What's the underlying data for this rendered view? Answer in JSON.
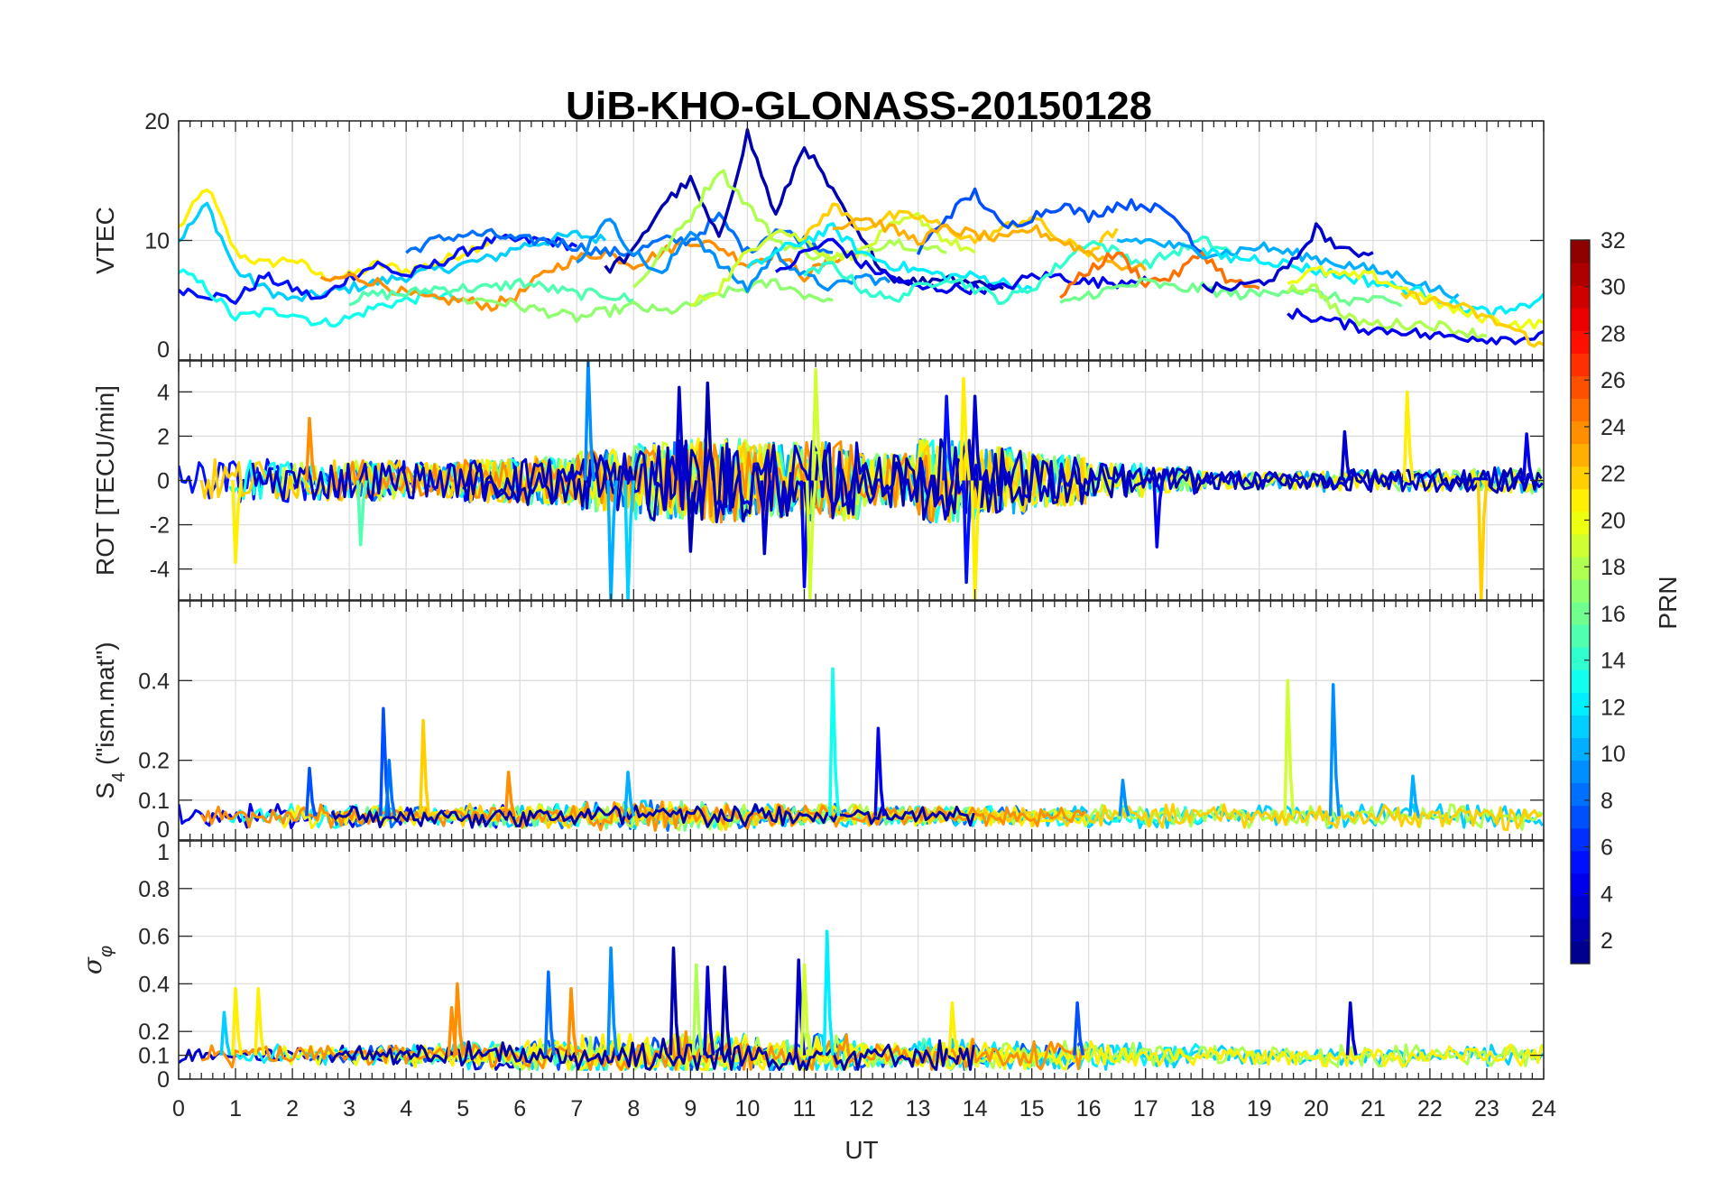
{
  "chart_data": {
    "type": "line",
    "title": "UiB-KHO-GLONASS-20150128",
    "xlabel": "UT",
    "xlim": [
      0,
      24
    ],
    "xticks": [
      "0",
      "1",
      "2",
      "3",
      "4",
      "5",
      "6",
      "7",
      "8",
      "9",
      "10",
      "11",
      "12",
      "13",
      "14",
      "15",
      "16",
      "17",
      "18",
      "19",
      "20",
      "21",
      "22",
      "23",
      "24"
    ],
    "colorbar": {
      "label": "PRN",
      "clim": [
        1,
        32
      ],
      "levels": 32,
      "colormap": "jet",
      "ticks": [
        "2",
        "4",
        "6",
        "8",
        "10",
        "12",
        "14",
        "16",
        "18",
        "20",
        "22",
        "24",
        "26",
        "28",
        "30",
        "32"
      ]
    },
    "panels": [
      {
        "name": "vtec",
        "ylabel": "VTEC",
        "ylim": [
          0,
          20
        ],
        "yticks": [
          {
            "v": 0,
            "label": "0"
          },
          {
            "v": 10,
            "label": "10"
          },
          {
            "v": 20,
            "label": "20"
          }
        ],
        "step_h": 0.5,
        "series": [
          {
            "prn": 21,
            "t0": 0,
            "values": [
              11,
              14.5,
              9,
              8,
              8.5,
              7,
              7,
              8,
              7.5,
              8,
              9,
              10
            ]
          },
          {
            "prn": 11,
            "t0": 0,
            "values": [
              10,
              13,
              7.5,
              6,
              5,
              5.5,
              6,
              6.5,
              7,
              7.5,
              8,
              8.5,
              9.5,
              10,
              10.5,
              10
            ]
          },
          {
            "prn": 5,
            "t0": 0,
            "values": [
              6,
              5.5,
              5,
              7,
              6,
              5,
              7,
              8,
              7,
              8,
              9,
              10,
              10,
              10,
              9.5
            ]
          },
          {
            "prn": 13,
            "t0": 0,
            "values": [
              7.5,
              6,
              3.5,
              4,
              4,
              3,
              3.5,
              4.5,
              5,
              5.5,
              5
            ]
          },
          {
            "prn": 24,
            "t0": 2.5,
            "values": [
              6.5,
              7,
              6.5,
              5.5,
              5,
              5,
              4.5,
              5.5,
              7.5,
              8.5,
              9,
              8,
              9,
              10,
              9.5,
              8,
              9,
              7,
              8.5,
              9
            ]
          },
          {
            "prn": 8,
            "t0": 4,
            "values": [
              9,
              10,
              10.5,
              10.5,
              10,
              10,
              9.5,
              9,
              9,
              10,
              10,
              12,
              9,
              11,
              10,
              9
            ]
          },
          {
            "prn": 15,
            "t0": 3,
            "values": [
              5,
              5.5,
              5.5,
              6,
              6,
              6,
              6.5,
              6,
              5.5,
              5.5,
              5
            ]
          },
          {
            "prn": 17,
            "t0": 5,
            "values": [
              5,
              5,
              4.5,
              4,
              3.5,
              4,
              4.5,
              4,
              4.5,
              5.5,
              6,
              6.5,
              5.5,
              5
            ]
          },
          {
            "prn": 2,
            "t0": 7.5,
            "values": [
              7.5,
              9,
              13,
              15,
              10,
              19,
              12,
              18,
              14,
              10,
              7,
              6.5,
              7,
              6.5,
              6
            ]
          },
          {
            "prn": 18,
            "t0": 8,
            "values": [
              6,
              9,
              12,
              16,
              13,
              10,
              9,
              8.5,
              9,
              10,
              9.5,
              9
            ]
          },
          {
            "prn": 9,
            "t0": 7,
            "values": [
              8,
              12,
              9,
              7,
              11,
              8,
              6,
              9,
              7,
              6,
              7,
              6.5
            ]
          },
          {
            "prn": 19,
            "t0": 9,
            "values": [
              4.5,
              6,
              9,
              11,
              10,
              8.5,
              9,
              11,
              12,
              10,
              9
            ]
          },
          {
            "prn": 12,
            "t0": 10,
            "values": [
              7.5,
              9,
              10,
              11,
              9,
              8,
              7.5,
              7,
              7,
              6.5,
              6
            ]
          },
          {
            "prn": 4,
            "t0": 10.5,
            "values": [
              7,
              9,
              10,
              8,
              7,
              6,
              6,
              6,
              6,
              7,
              7,
              6.5,
              6.5,
              7
            ]
          },
          {
            "prn": 22,
            "t0": 11,
            "values": [
              10,
              13,
              11,
              12,
              12,
              11,
              10,
              11,
              12,
              10,
              9,
              11
            ]
          },
          {
            "prn": 14,
            "t0": 11,
            "values": [
              7,
              8,
              6,
              5,
              6,
              7,
              6,
              5,
              6,
              8,
              10,
              9,
              8,
              9,
              10,
              9
            ]
          },
          {
            "prn": 7,
            "t0": 13,
            "values": [
              9,
              12,
              14,
              11,
              12,
              13,
              12,
              13,
              13,
              12,
              9
            ]
          },
          {
            "prn": 23,
            "t0": 11.5,
            "values": [
              11,
              12,
              11,
              10,
              11,
              10.5,
              10,
              11,
              10,
              9,
              8,
              7.5
            ]
          },
          {
            "prn": 25,
            "t0": 15.5,
            "values": [
              5.5,
              7.5,
              9,
              6.5,
              7,
              9,
              6.5,
              6
            ]
          },
          {
            "prn": 16,
            "t0": 15.5,
            "values": [
              4.5,
              5.5,
              6,
              6.5,
              6,
              6,
              5.5,
              5.5,
              6,
              5.5,
              5,
              5,
              4.5
            ]
          },
          {
            "prn": 10,
            "t0": 16.5,
            "values": [
              10,
              10,
              9.5,
              9,
              9,
              9.5,
              9,
              8.5,
              8,
              7.5,
              7,
              6,
              5.5
            ]
          },
          {
            "prn": 12,
            "t0": 18,
            "values": [
              9,
              8.5,
              8.5,
              8,
              7.5,
              7,
              6.5,
              6,
              5.5,
              4.5,
              4,
              4,
              5.5
            ]
          },
          {
            "prn": 3,
            "t0": 18,
            "values": [
              6,
              6,
              6.5,
              7.5,
              11,
              9,
              9
            ]
          },
          {
            "prn": 18,
            "t0": 19.5,
            "values": [
              6,
              6,
              3.5,
              3,
              3,
              3,
              2.5,
              2
            ]
          },
          {
            "prn": 20,
            "t0": 19.5,
            "values": [
              6.5,
              7.5,
              7,
              7,
              6,
              5,
              4,
              3.5,
              3,
              3,
              3
            ]
          },
          {
            "prn": 4,
            "t0": 19.5,
            "values": [
              4,
              3.5,
              3,
              2.5,
              2.5,
              2,
              2,
              1.8,
              1.8,
              2,
              2.5,
              3
            ]
          },
          {
            "prn": 22,
            "t0": 21.5,
            "values": [
              5.5,
              5,
              4.5,
              3.5,
              2.5,
              1,
              8,
              6
            ]
          }
        ]
      },
      {
        "name": "rot",
        "ylabel": "ROT [TECU/min]",
        "ylim": [
          -5.4,
          5.4
        ],
        "yticks": [
          {
            "v": -4,
            "label": "-4"
          },
          {
            "v": -2,
            "label": "-2"
          },
          {
            "v": 0,
            "label": "0"
          },
          {
            "v": 2,
            "label": "2"
          },
          {
            "v": 4,
            "label": "4"
          }
        ],
        "baseline": 0,
        "hourly_amplitude": [
          1,
          1,
          0.9,
          0.9,
          0.8,
          1,
          1.1,
          1.4,
          1.8,
          1.9,
          1.7,
          1.8,
          1.2,
          1.9,
          1.5,
          1.2,
          0.8,
          0.6,
          0.4,
          0.4,
          0.5,
          0.5,
          0.5,
          0.6
        ],
        "prns": [
          5,
          8,
          10,
          13,
          15,
          17,
          19,
          21,
          22,
          24,
          2,
          3
        ],
        "spikes": [
          [
            1.0,
            -3.7,
            21
          ],
          [
            3.2,
            -2.9,
            15
          ],
          [
            2.3,
            2.8,
            24
          ],
          [
            7.2,
            5.4,
            9
          ],
          [
            7.6,
            -5.4,
            10
          ],
          [
            7.9,
            -5.4,
            11
          ],
          [
            8.8,
            4.2,
            3
          ],
          [
            9.0,
            -3.2,
            2
          ],
          [
            9.3,
            4.4,
            2
          ],
          [
            10.3,
            -3.3,
            3
          ],
          [
            11.0,
            -4.8,
            4
          ],
          [
            11.2,
            5.0,
            19
          ],
          [
            11.1,
            -5.3,
            19
          ],
          [
            13.5,
            3.8,
            5
          ],
          [
            13.8,
            4.6,
            21
          ],
          [
            13.85,
            -4.6,
            5
          ],
          [
            14.0,
            -5.4,
            21
          ],
          [
            14.0,
            3.8,
            3
          ],
          [
            17.2,
            -3.0,
            4
          ],
          [
            20.5,
            2.2,
            3
          ],
          [
            21.6,
            4.0,
            21
          ],
          [
            22.9,
            -5.4,
            22
          ],
          [
            23.7,
            2.1,
            4
          ]
        ]
      },
      {
        "name": "s4",
        "ylabel_main": "S",
        "ylabel_sub": "4",
        "ylabel_rest": " (\"ism.mat\")",
        "ylim": [
          0,
          0.6
        ],
        "yticks": [
          {
            "v": 0,
            "label": "0"
          },
          {
            "v": 0.1,
            "label": "0.1"
          },
          {
            "v": 0.2,
            "label": "0.2"
          },
          {
            "v": 0.4,
            "label": "0.4"
          }
        ],
        "baseline": 0.06,
        "hourly_amplitude": [
          0.03,
          0.03,
          0.03,
          0.03,
          0.025,
          0.03,
          0.03,
          0.035,
          0.04,
          0.035,
          0.03,
          0.03,
          0.025,
          0.025,
          0.025,
          0.025,
          0.03,
          0.03,
          0.03,
          0.025,
          0.03,
          0.03,
          0.03,
          0.035
        ],
        "prns": [
          4,
          8,
          11,
          13,
          16,
          18,
          21,
          22,
          24,
          2
        ],
        "spikes": [
          [
            2.3,
            0.18,
            7
          ],
          [
            3.6,
            0.33,
            7
          ],
          [
            3.7,
            0.2,
            8
          ],
          [
            4.3,
            0.3,
            22
          ],
          [
            5.8,
            0.17,
            24
          ],
          [
            7.9,
            0.17,
            10
          ],
          [
            11.5,
            0.43,
            13
          ],
          [
            12.3,
            0.28,
            4
          ],
          [
            16.6,
            0.15,
            9
          ],
          [
            19.5,
            0.4,
            19
          ],
          [
            20.3,
            0.39,
            9
          ],
          [
            21.7,
            0.16,
            10
          ]
        ]
      },
      {
        "name": "sigma_phi",
        "ylabel_main": "σ",
        "ylabel_sub": "φ",
        "ylim": [
          0,
          1
        ],
        "yticks": [
          {
            "v": 0,
            "label": "0"
          },
          {
            "v": 0.1,
            "label": "0.1"
          },
          {
            "v": 0.2,
            "label": "0.2"
          },
          {
            "v": 0.4,
            "label": "0.4"
          },
          {
            "v": 0.6,
            "label": "0.6"
          },
          {
            "v": 0.8,
            "label": "0.8"
          },
          {
            "v": 1,
            "label": "1"
          }
        ],
        "baseline": 0.1,
        "hourly_amplitude": [
          0.05,
          0.05,
          0.04,
          0.04,
          0.05,
          0.06,
          0.07,
          0.09,
          0.1,
          0.1,
          0.08,
          0.09,
          0.05,
          0.07,
          0.06,
          0.06,
          0.06,
          0.05,
          0.04,
          0.04,
          0.05,
          0.05,
          0.04,
          0.05
        ],
        "prns": [
          3,
          7,
          11,
          12,
          15,
          18,
          20,
          21,
          24,
          2
        ],
        "spikes": [
          [
            0.8,
            0.28,
            11
          ],
          [
            1.0,
            0.38,
            21
          ],
          [
            1.4,
            0.38,
            21
          ],
          [
            4.8,
            0.3,
            24
          ],
          [
            4.9,
            0.4,
            24
          ],
          [
            6.5,
            0.45,
            8
          ],
          [
            6.9,
            0.38,
            24
          ],
          [
            7.6,
            0.55,
            9
          ],
          [
            8.7,
            0.55,
            2
          ],
          [
            9.1,
            0.48,
            18
          ],
          [
            9.3,
            0.47,
            3
          ],
          [
            9.6,
            0.47,
            2
          ],
          [
            10.9,
            0.5,
            3
          ],
          [
            11.0,
            0.48,
            19
          ],
          [
            11.4,
            0.62,
            12
          ],
          [
            13.6,
            0.32,
            21
          ],
          [
            15.8,
            0.32,
            7
          ],
          [
            20.6,
            0.32,
            3
          ]
        ]
      }
    ]
  }
}
